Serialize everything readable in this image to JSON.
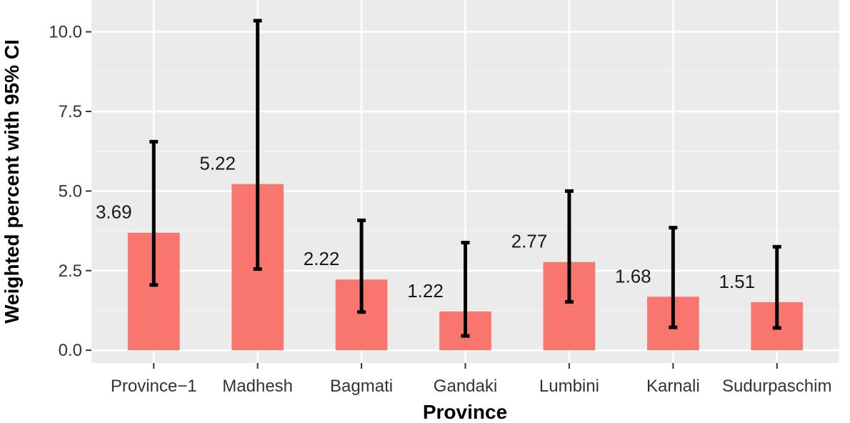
{
  "chart_data": {
    "type": "bar",
    "title": "",
    "xlabel": "Province",
    "ylabel": "Weighted percent with 95% CI",
    "categories": [
      "Province−1",
      "Madhesh",
      "Bagmati",
      "Gandaki",
      "Lumbini",
      "Karnali",
      "Sudurpaschim"
    ],
    "values": [
      3.69,
      5.22,
      2.22,
      1.22,
      2.77,
      1.68,
      1.51
    ],
    "ci_lower": [
      2.05,
      2.55,
      1.2,
      0.45,
      1.52,
      0.72,
      0.7
    ],
    "ci_upper": [
      6.55,
      10.35,
      4.08,
      3.38,
      5.0,
      3.85,
      3.25
    ],
    "data_labels": [
      "3.69",
      "5.22",
      "2.22",
      "1.22",
      "2.77",
      "1.68",
      "1.51"
    ],
    "yticks": [
      0.0,
      2.5,
      5.0,
      7.5,
      10.0
    ],
    "ytick_labels": [
      "0.0",
      "2.5",
      "5.0",
      "7.5",
      "10.0"
    ],
    "ylim": [
      -0.4,
      11.0
    ],
    "grid": true,
    "legend": "none",
    "colors": {
      "bar": "#F8766D",
      "panel": "#EBEBEB",
      "grid_major": "#FFFFFF",
      "grid_minor": "#F4F4F4",
      "errorbar": "#000000"
    }
  }
}
